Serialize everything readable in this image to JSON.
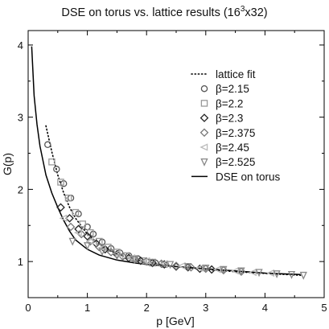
{
  "chart_data": {
    "type": "scatter",
    "title_main": "DSE on torus vs. lattice results (16",
    "title_sup": "3",
    "title_end": "x32)",
    "xlabel": "p [GeV]",
    "ylabel": "G(p)",
    "xlim": [
      0,
      5
    ],
    "ylim": [
      0.5,
      4.2
    ],
    "x_ticks": [
      "0",
      "1",
      "2",
      "3",
      "4",
      "5"
    ],
    "y_ticks": [
      "1",
      "2",
      "3",
      "4"
    ],
    "x_tick_values": [
      0,
      1,
      2,
      3,
      4,
      5
    ],
    "y_tick_values": [
      1,
      2,
      3,
      4
    ],
    "legend_position": "top-right",
    "grid": false,
    "lines": [
      {
        "name": "lattice fit",
        "style": "dotted",
        "color": "#000000",
        "points": [
          [
            0.3,
            2.88
          ],
          [
            0.4,
            2.52
          ],
          [
            0.5,
            2.2
          ],
          [
            0.6,
            1.95
          ],
          [
            0.7,
            1.75
          ],
          [
            0.8,
            1.6
          ],
          [
            1.0,
            1.38
          ],
          [
            1.2,
            1.24
          ],
          [
            1.5,
            1.1
          ],
          [
            2.0,
            0.99
          ],
          [
            2.5,
            0.93
          ],
          [
            3.0,
            0.89
          ],
          [
            3.5,
            0.86
          ],
          [
            4.0,
            0.835
          ],
          [
            4.6,
            0.81
          ]
        ]
      },
      {
        "name": "DSE on torus",
        "style": "solid",
        "color": "#000000",
        "points": [
          [
            0.06,
            3.98
          ],
          [
            0.1,
            3.3
          ],
          [
            0.15,
            2.9
          ],
          [
            0.2,
            2.6
          ],
          [
            0.3,
            2.2
          ],
          [
            0.4,
            1.95
          ],
          [
            0.5,
            1.75
          ],
          [
            0.6,
            1.57
          ],
          [
            0.7,
            1.42
          ],
          [
            0.8,
            1.3
          ],
          [
            1.0,
            1.17
          ],
          [
            1.2,
            1.09
          ],
          [
            1.5,
            1.02
          ],
          [
            1.8,
            0.98
          ],
          [
            2.0,
            0.96
          ],
          [
            2.5,
            0.93
          ],
          [
            3.0,
            0.9
          ],
          [
            3.5,
            0.87
          ],
          [
            4.0,
            0.84
          ],
          [
            4.6,
            0.82
          ]
        ]
      }
    ],
    "series": [
      {
        "name": "β=2.15",
        "marker": "circle",
        "color": "#555555",
        "points": [
          [
            0.33,
            2.62
          ],
          [
            0.48,
            2.28
          ],
          [
            0.6,
            2.08
          ],
          [
            0.72,
            1.88
          ],
          [
            0.85,
            1.66
          ],
          [
            1.0,
            1.48
          ],
          [
            1.1,
            1.38
          ],
          [
            1.25,
            1.27
          ],
          [
            1.4,
            1.18
          ],
          [
            1.55,
            1.12
          ],
          [
            1.7,
            1.08
          ],
          [
            1.85,
            1.04
          ],
          [
            2.0,
            1.0
          ],
          [
            2.15,
            0.98
          ]
        ]
      },
      {
        "name": "β=2.2",
        "marker": "square",
        "color": "#999999",
        "points": [
          [
            0.4,
            2.38
          ],
          [
            0.55,
            2.1
          ],
          [
            0.68,
            1.88
          ],
          [
            0.8,
            1.68
          ],
          [
            0.92,
            1.52
          ],
          [
            1.05,
            1.4
          ],
          [
            1.2,
            1.28
          ],
          [
            1.35,
            1.2
          ],
          [
            1.5,
            1.13
          ],
          [
            1.65,
            1.08
          ],
          [
            1.8,
            1.04
          ],
          [
            1.95,
            1.01
          ],
          [
            2.1,
            0.98
          ],
          [
            2.3,
            0.96
          ]
        ]
      },
      {
        "name": "β=2.3",
        "marker": "diamond",
        "color": "#222222",
        "points": [
          [
            0.55,
            1.75
          ],
          [
            0.7,
            1.6
          ],
          [
            0.85,
            1.45
          ],
          [
            1.0,
            1.35
          ],
          [
            1.15,
            1.25
          ],
          [
            1.3,
            1.17
          ],
          [
            1.5,
            1.1
          ],
          [
            1.7,
            1.05
          ],
          [
            1.9,
            1.01
          ],
          [
            2.1,
            0.98
          ],
          [
            2.3,
            0.96
          ],
          [
            2.5,
            0.93
          ],
          [
            2.7,
            0.92
          ],
          [
            2.9,
            0.9
          ],
          [
            3.1,
            0.89
          ]
        ]
      },
      {
        "name": "β=2.375",
        "marker": "diamond",
        "color": "#777777",
        "points": [
          [
            0.72,
            1.48
          ],
          [
            0.9,
            1.38
          ],
          [
            1.05,
            1.28
          ],
          [
            1.2,
            1.2
          ],
          [
            1.4,
            1.13
          ],
          [
            1.6,
            1.07
          ],
          [
            1.8,
            1.03
          ],
          [
            2.0,
            1.0
          ],
          [
            2.25,
            0.97
          ],
          [
            2.5,
            0.94
          ],
          [
            2.75,
            0.92
          ],
          [
            3.0,
            0.9
          ],
          [
            3.3,
            0.88
          ],
          [
            3.6,
            0.86
          ]
        ]
      },
      {
        "name": "β=2.45",
        "marker": "triangle-left",
        "color": "#bbbbbb",
        "points": [
          [
            0.6,
            1.6
          ],
          [
            0.85,
            1.4
          ],
          [
            1.05,
            1.28
          ],
          [
            1.25,
            1.19
          ],
          [
            1.5,
            1.11
          ],
          [
            1.75,
            1.05
          ],
          [
            2.0,
            1.01
          ],
          [
            2.3,
            0.97
          ],
          [
            2.6,
            0.94
          ],
          [
            2.9,
            0.91
          ],
          [
            3.2,
            0.89
          ],
          [
            3.5,
            0.87
          ],
          [
            3.8,
            0.85
          ],
          [
            4.1,
            0.84
          ]
        ]
      },
      {
        "name": "β=2.525",
        "marker": "triangle-down",
        "color": "#888888",
        "points": [
          [
            0.75,
            1.28
          ],
          [
            1.0,
            1.22
          ],
          [
            1.25,
            1.14
          ],
          [
            1.5,
            1.08
          ],
          [
            1.8,
            1.03
          ],
          [
            2.1,
            0.99
          ],
          [
            2.4,
            0.96
          ],
          [
            2.7,
            0.93
          ],
          [
            3.0,
            0.91
          ],
          [
            3.3,
            0.89
          ],
          [
            3.6,
            0.87
          ],
          [
            3.9,
            0.85
          ],
          [
            4.2,
            0.83
          ],
          [
            4.45,
            0.82
          ],
          [
            4.65,
            0.81
          ]
        ]
      }
    ]
  }
}
